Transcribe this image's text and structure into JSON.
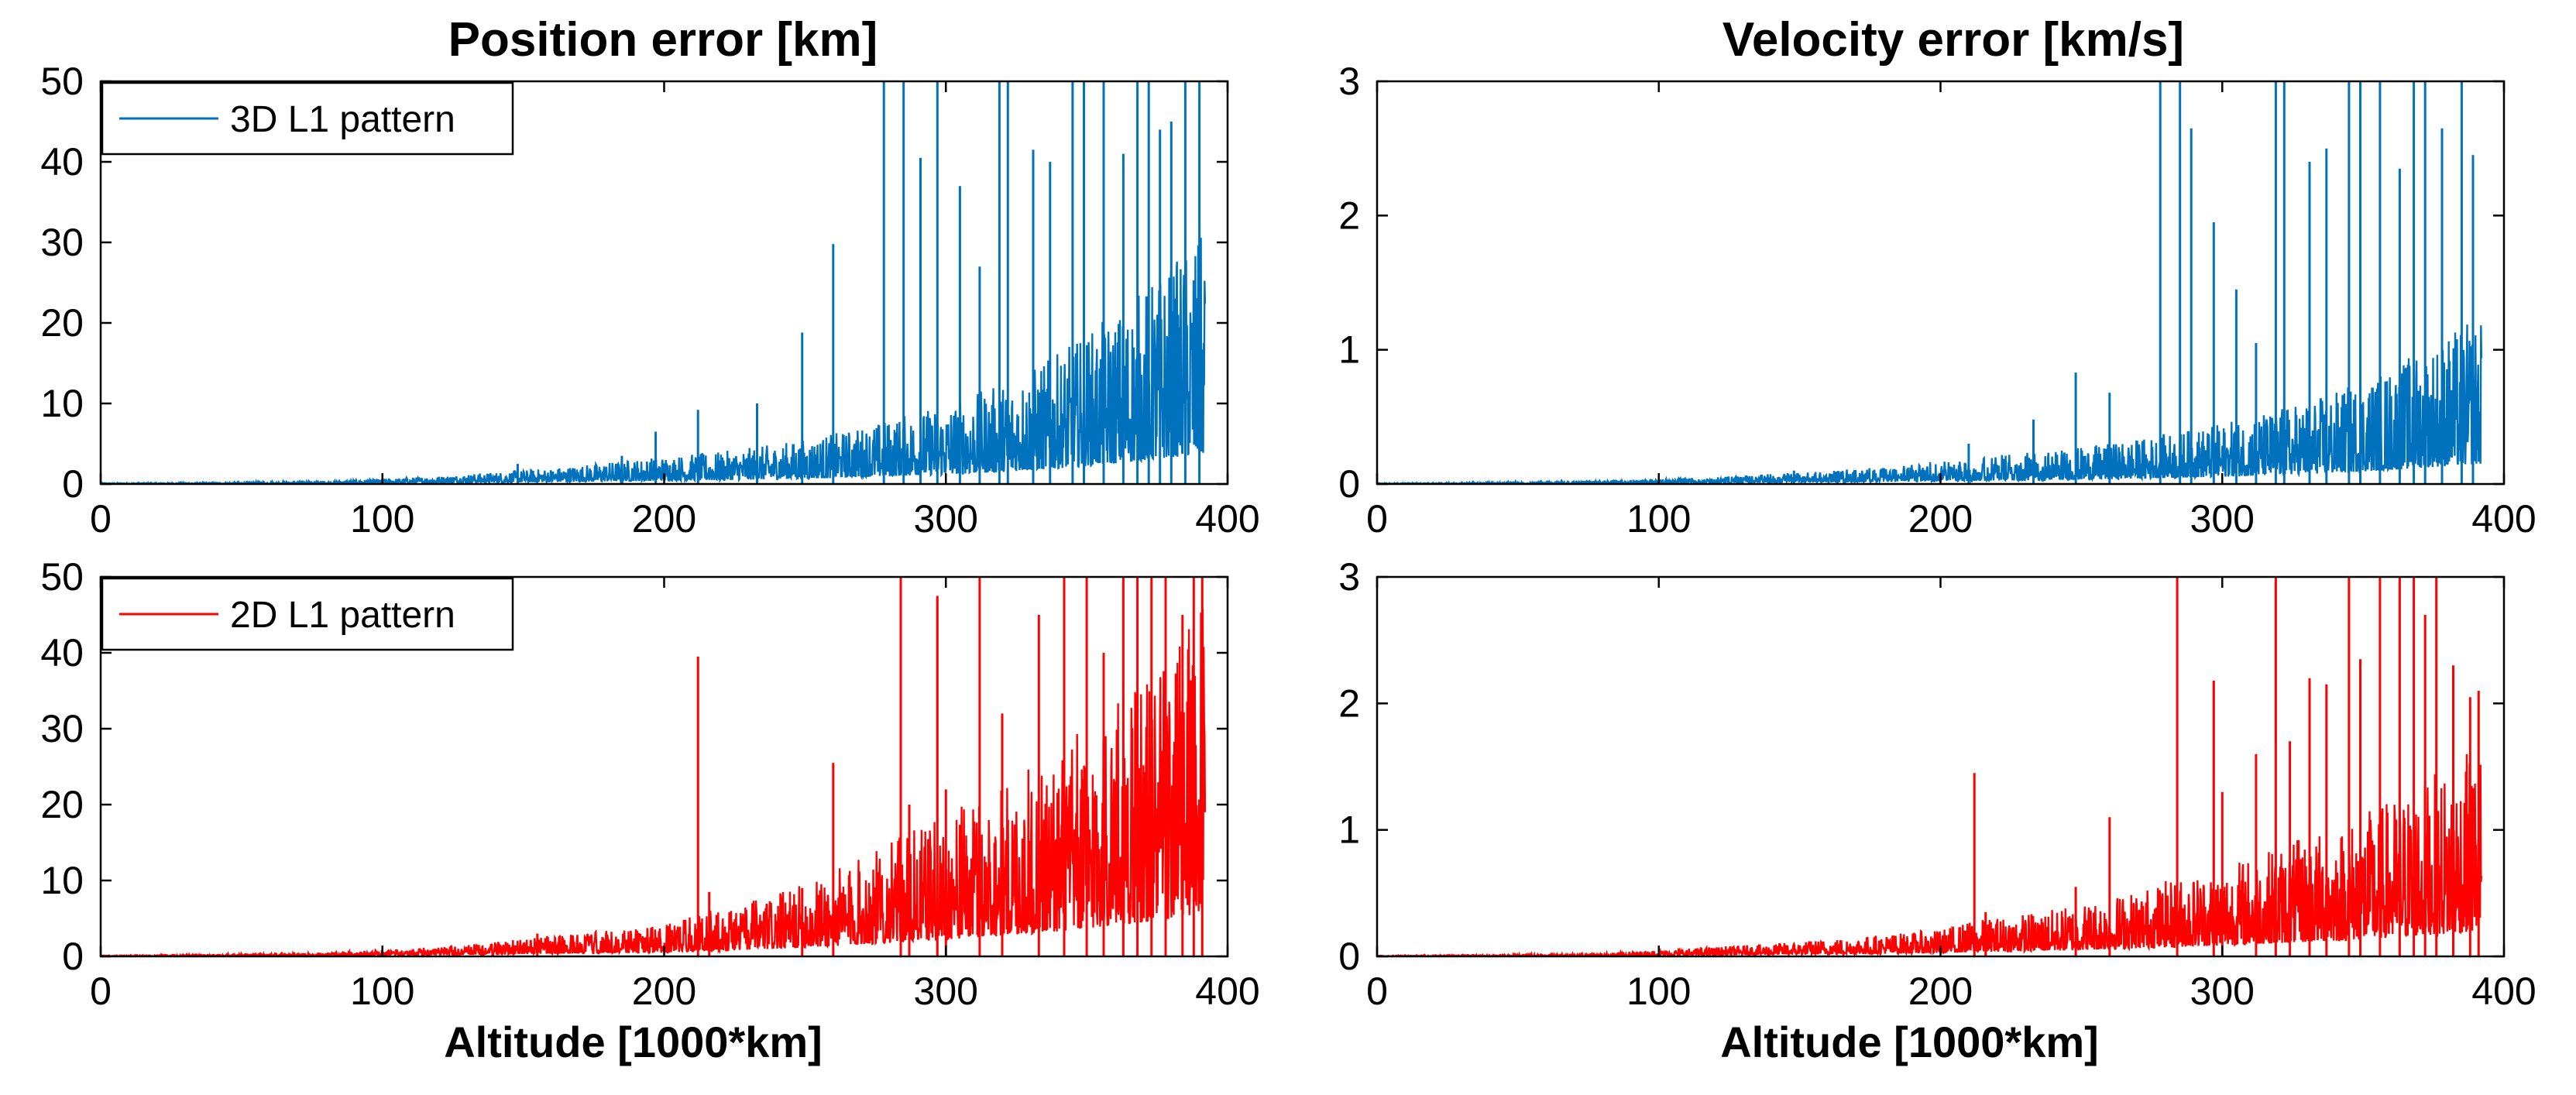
{
  "columns": [
    {
      "title": "Position error [km]"
    },
    {
      "title": "Velocity error [km/s]"
    }
  ],
  "chart_data": [
    {
      "type": "line",
      "title": "Position error [km]",
      "xlabel": "",
      "ylabel": "",
      "xlim": [
        0,
        400
      ],
      "ylim": [
        0,
        50
      ],
      "x_ticks": [
        "0",
        "100",
        "200",
        "300",
        "400"
      ],
      "y_ticks": [
        "0",
        "10",
        "20",
        "30",
        "40",
        "50"
      ],
      "grid": false,
      "legend_position": "top-left",
      "series": [
        {
          "name": "3D L1 pattern",
          "color": "#0072BD"
        }
      ],
      "x_max_data": 392,
      "envelope": [
        [
          0,
          0.1
        ],
        [
          40,
          0.15
        ],
        [
          80,
          0.3
        ],
        [
          100,
          0.5
        ],
        [
          120,
          0.8
        ],
        [
          140,
          1.2
        ],
        [
          160,
          1.6
        ],
        [
          180,
          2.2
        ],
        [
          200,
          2.8
        ],
        [
          220,
          3.2
        ],
        [
          240,
          4
        ],
        [
          260,
          5
        ],
        [
          280,
          6.5
        ],
        [
          300,
          8
        ],
        [
          320,
          10
        ],
        [
          340,
          13
        ],
        [
          360,
          17
        ],
        [
          380,
          22
        ],
        [
          392,
          25
        ]
      ],
      "spikes": [
        [
          148,
          2.5
        ],
        [
          185,
          3.5
        ],
        [
          197,
          6.5
        ],
        [
          212,
          9.2
        ],
        [
          233,
          10
        ],
        [
          249,
          18.8
        ],
        [
          260,
          29.8
        ],
        [
          278,
          50
        ],
        [
          285,
          50
        ],
        [
          291,
          40.5
        ],
        [
          297,
          50
        ],
        [
          305,
          37
        ],
        [
          312,
          27
        ],
        [
          319,
          50
        ],
        [
          322,
          50
        ],
        [
          331,
          41.5
        ],
        [
          337,
          40
        ],
        [
          345,
          50
        ],
        [
          349,
          50
        ],
        [
          356,
          50
        ],
        [
          363,
          41
        ],
        [
          368,
          50
        ],
        [
          372,
          50
        ],
        [
          376,
          44
        ],
        [
          380,
          45
        ],
        [
          385,
          50
        ],
        [
          390,
          50
        ]
      ]
    },
    {
      "type": "line",
      "title": "Velocity error [km/s]",
      "xlabel": "",
      "ylabel": "",
      "xlim": [
        0,
        400
      ],
      "ylim": [
        0,
        3
      ],
      "x_ticks": [
        "0",
        "100",
        "200",
        "300",
        "400"
      ],
      "y_ticks": [
        "0",
        "1",
        "2",
        "3"
      ],
      "grid": false,
      "series": [
        {
          "name": "",
          "color": "#0072BD"
        }
      ],
      "x_max_data": 392,
      "envelope": [
        [
          0,
          0.005
        ],
        [
          40,
          0.01
        ],
        [
          80,
          0.02
        ],
        [
          100,
          0.03
        ],
        [
          120,
          0.04
        ],
        [
          140,
          0.06
        ],
        [
          160,
          0.08
        ],
        [
          180,
          0.1
        ],
        [
          200,
          0.14
        ],
        [
          220,
          0.17
        ],
        [
          240,
          0.2
        ],
        [
          260,
          0.24
        ],
        [
          280,
          0.3
        ],
        [
          300,
          0.36
        ],
        [
          320,
          0.45
        ],
        [
          340,
          0.55
        ],
        [
          360,
          0.7
        ],
        [
          380,
          0.9
        ],
        [
          392,
          1.0
        ]
      ],
      "spikes": [
        [
          148,
          0.1
        ],
        [
          210,
          0.3
        ],
        [
          233,
          0.48
        ],
        [
          248,
          0.83
        ],
        [
          260,
          0.68
        ],
        [
          278,
          3
        ],
        [
          285,
          3
        ],
        [
          289,
          2.65
        ],
        [
          297,
          1.95
        ],
        [
          305,
          1.45
        ],
        [
          312,
          1.05
        ],
        [
          319,
          3
        ],
        [
          322,
          3
        ],
        [
          331,
          2.4
        ],
        [
          337,
          2.5
        ],
        [
          345,
          3
        ],
        [
          349,
          3
        ],
        [
          356,
          3
        ],
        [
          363,
          2.35
        ],
        [
          368,
          3
        ],
        [
          372,
          3
        ],
        [
          378,
          2.65
        ],
        [
          385,
          3
        ],
        [
          389,
          2.45
        ]
      ]
    },
    {
      "type": "line",
      "title": "",
      "xlabel": "Altitude [1000*km]",
      "ylabel": "",
      "xlim": [
        0,
        400
      ],
      "ylim": [
        0,
        50
      ],
      "x_ticks": [
        "0",
        "100",
        "200",
        "300",
        "400"
      ],
      "y_ticks": [
        "0",
        "10",
        "20",
        "30",
        "40",
        "50"
      ],
      "grid": false,
      "legend_position": "top-left",
      "series": [
        {
          "name": "2D L1 pattern",
          "color": "#FF0000"
        }
      ],
      "x_max_data": 392,
      "envelope": [
        [
          0,
          0.1
        ],
        [
          40,
          0.2
        ],
        [
          80,
          0.4
        ],
        [
          100,
          0.7
        ],
        [
          120,
          1.0
        ],
        [
          140,
          1.5
        ],
        [
          160,
          2.2
        ],
        [
          180,
          2.8
        ],
        [
          200,
          3.2
        ],
        [
          210,
          4.5
        ],
        [
          220,
          5
        ],
        [
          240,
          6.5
        ],
        [
          260,
          9
        ],
        [
          280,
          12
        ],
        [
          300,
          15
        ],
        [
          320,
          18
        ],
        [
          340,
          22
        ],
        [
          360,
          27
        ],
        [
          380,
          33
        ],
        [
          392,
          37
        ]
      ],
      "spikes": [
        [
          155,
          3
        ],
        [
          212,
          39.5
        ],
        [
          216,
          8.5
        ],
        [
          249,
          9
        ],
        [
          260,
          25.5
        ],
        [
          284,
          50
        ],
        [
          287,
          20
        ],
        [
          297,
          47.5
        ],
        [
          300,
          22
        ],
        [
          312,
          50
        ],
        [
          320,
          32
        ],
        [
          333,
          45
        ],
        [
          342,
          50
        ],
        [
          350,
          50
        ],
        [
          356,
          40
        ],
        [
          363,
          50
        ],
        [
          368,
          50
        ],
        [
          373,
          50
        ],
        [
          378,
          50
        ],
        [
          384,
          45
        ],
        [
          388,
          50
        ],
        [
          391,
          50
        ]
      ]
    },
    {
      "type": "line",
      "title": "",
      "xlabel": "Altitude [1000*km]",
      "ylabel": "",
      "xlim": [
        0,
        400
      ],
      "ylim": [
        0,
        3
      ],
      "x_ticks": [
        "0",
        "100",
        "200",
        "300",
        "400"
      ],
      "y_ticks": [
        "0",
        "1",
        "2",
        "3"
      ],
      "grid": false,
      "series": [
        {
          "name": "",
          "color": "#FF0000"
        }
      ],
      "x_max_data": 392,
      "envelope": [
        [
          0,
          0.005
        ],
        [
          40,
          0.01
        ],
        [
          80,
          0.02
        ],
        [
          100,
          0.04
        ],
        [
          120,
          0.06
        ],
        [
          140,
          0.08
        ],
        [
          160,
          0.11
        ],
        [
          180,
          0.14
        ],
        [
          200,
          0.17
        ],
        [
          210,
          0.22
        ],
        [
          220,
          0.25
        ],
        [
          240,
          0.3
        ],
        [
          260,
          0.38
        ],
        [
          280,
          0.48
        ],
        [
          300,
          0.58
        ],
        [
          320,
          0.7
        ],
        [
          340,
          0.82
        ],
        [
          360,
          1.0
        ],
        [
          380,
          1.2
        ],
        [
          392,
          1.35
        ]
      ],
      "spikes": [
        [
          212,
          1.45
        ],
        [
          216,
          0.35
        ],
        [
          248,
          0.55
        ],
        [
          260,
          1.1
        ],
        [
          284,
          3
        ],
        [
          297,
          2.18
        ],
        [
          300,
          1.3
        ],
        [
          312,
          1.6
        ],
        [
          319,
          3
        ],
        [
          324,
          1.7
        ],
        [
          331,
          2.2
        ],
        [
          337,
          2.15
        ],
        [
          345,
          3
        ],
        [
          349,
          2.35
        ],
        [
          356,
          3
        ],
        [
          363,
          3
        ],
        [
          368,
          3
        ],
        [
          372,
          2.7
        ],
        [
          376,
          3
        ],
        [
          382,
          2.3
        ],
        [
          388,
          2.05
        ],
        [
          391,
          2.1
        ]
      ]
    }
  ]
}
